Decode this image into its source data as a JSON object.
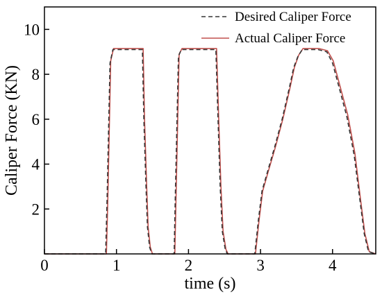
{
  "chart_data": {
    "type": "line",
    "xlabel": "time (s)",
    "ylabel": "Caliper Force (KN)",
    "xlim": [
      0,
      4.6
    ],
    "ylim": [
      0,
      11.0
    ],
    "xticks": [
      0,
      1,
      2,
      3,
      4
    ],
    "xtick_labels": [
      "0",
      "1",
      "2",
      "3",
      "4"
    ],
    "yticks": [
      2,
      4,
      6,
      8,
      10
    ],
    "ytick_labels": [
      "2",
      "4",
      "6",
      "8",
      "10"
    ],
    "grid": false,
    "legend_position": "top-right",
    "series": [
      {
        "name": "Desired Caliper Force",
        "style": "dashed",
        "color": "#333333",
        "x": [
          0.0,
          0.85,
          0.87,
          0.91,
          0.95,
          1.0,
          1.2,
          1.36,
          1.38,
          1.41,
          1.43,
          1.46,
          1.49,
          1.75,
          1.8,
          1.82,
          1.86,
          1.9,
          2.0,
          2.2,
          2.38,
          2.41,
          2.44,
          2.47,
          2.51,
          2.54,
          2.92,
          2.97,
          3.02,
          3.1,
          3.2,
          3.3,
          3.4,
          3.46,
          3.52,
          3.58,
          3.65,
          3.8,
          3.92,
          4.0,
          4.1,
          4.2,
          4.3,
          4.38,
          4.44,
          4.5,
          4.6
        ],
        "y": [
          0.0,
          0.0,
          2.5,
          8.5,
          9.1,
          9.1,
          9.1,
          9.1,
          6.0,
          3.0,
          1.2,
          0.3,
          0.0,
          0.0,
          0.0,
          3.0,
          8.8,
          9.1,
          9.1,
          9.1,
          9.1,
          6.0,
          3.0,
          1.0,
          0.2,
          0.0,
          0.0,
          1.5,
          2.8,
          3.7,
          4.8,
          6.0,
          7.4,
          8.3,
          8.8,
          9.1,
          9.1,
          9.1,
          9.0,
          8.5,
          7.3,
          6.1,
          4.4,
          2.4,
          0.9,
          0.1,
          0.0
        ]
      },
      {
        "name": "Actual Caliper Force",
        "style": "solid",
        "color": "#c0504d",
        "x": [
          0.0,
          0.86,
          0.88,
          0.92,
          0.96,
          1.0,
          1.2,
          1.37,
          1.39,
          1.42,
          1.44,
          1.47,
          1.5,
          1.76,
          1.81,
          1.83,
          1.87,
          1.91,
          2.0,
          2.2,
          2.39,
          2.42,
          2.45,
          2.48,
          2.52,
          2.55,
          2.93,
          2.98,
          3.03,
          3.11,
          3.21,
          3.31,
          3.41,
          3.47,
          3.53,
          3.59,
          3.66,
          3.81,
          3.93,
          4.01,
          4.11,
          4.21,
          4.31,
          4.39,
          4.45,
          4.51,
          4.6
        ],
        "y": [
          0.0,
          0.0,
          2.5,
          8.6,
          9.15,
          9.15,
          9.15,
          9.15,
          6.0,
          3.0,
          1.2,
          0.3,
          0.0,
          0.0,
          0.0,
          3.0,
          8.9,
          9.15,
          9.15,
          9.15,
          9.15,
          6.0,
          3.0,
          1.0,
          0.2,
          0.0,
          0.0,
          1.5,
          2.8,
          3.7,
          4.8,
          6.0,
          7.4,
          8.3,
          8.85,
          9.15,
          9.15,
          9.15,
          9.05,
          8.6,
          7.4,
          6.2,
          4.5,
          2.4,
          0.9,
          0.1,
          0.0
        ]
      }
    ]
  }
}
